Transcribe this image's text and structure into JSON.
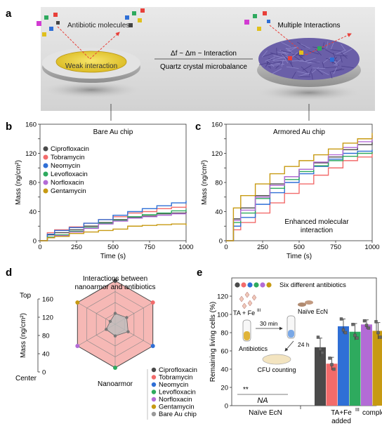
{
  "panels": {
    "a": "a",
    "b": "b",
    "c": "c",
    "d": "d",
    "e": "e"
  },
  "schematic": {
    "antibiotic_label": "Antibiotic molecules",
    "weak_label": "Weak interaction",
    "multiple_label": "Multiple Interactions",
    "equation": "Δf ~ Δm ~ Interaction",
    "qcm_label": "Quartz crystal microbalance"
  },
  "colors": {
    "Ciprofloxacin": "#4a4a4a",
    "Tobramycin": "#f26b6b",
    "Neomycin": "#2f6fd6",
    "Levofloxacin": "#2eaa5e",
    "Norfloxacin": "#b36bd6",
    "Gentamycin": "#c79a12"
  },
  "chart_data": [
    {
      "type": "line",
      "panel": "b",
      "title": "Bare Au chip",
      "xlabel": "Time (s)",
      "ylabel": "Mass (ng/cm²)",
      "xlim": [
        0,
        1000
      ],
      "ylim": [
        0,
        160
      ],
      "xticks": [
        0,
        250,
        500,
        750,
        1000
      ],
      "yticks": [
        0,
        20,
        40,
        60,
        80,
        100,
        120,
        140,
        160
      ],
      "x": [
        0,
        50,
        100,
        200,
        300,
        400,
        500,
        600,
        700,
        800,
        900,
        1000
      ],
      "legend": [
        "Ciprofloxacin",
        "Tobramycin",
        "Neomycin",
        "Levofloxacin",
        "Norfloxacin",
        "Gentamycin"
      ],
      "series": [
        {
          "name": "Ciprofloxacin",
          "values": [
            0,
            8,
            11,
            15,
            20,
            25,
            29,
            32,
            34,
            37,
            38,
            40
          ]
        },
        {
          "name": "Tobramycin",
          "values": [
            0,
            11,
            15,
            19,
            24,
            29,
            33,
            38,
            40,
            44,
            46,
            49
          ]
        },
        {
          "name": "Neomycin",
          "values": [
            0,
            9,
            14,
            18,
            24,
            29,
            35,
            40,
            44,
            48,
            52,
            55
          ]
        },
        {
          "name": "Levofloxacin",
          "values": [
            0,
            5,
            8,
            13,
            18,
            24,
            28,
            33,
            36,
            38,
            41,
            43
          ]
        },
        {
          "name": "Norfloxacin",
          "values": [
            0,
            4,
            7,
            12,
            17,
            23,
            27,
            31,
            33,
            35,
            37,
            38
          ]
        },
        {
          "name": "Gentamycin",
          "values": [
            0,
            4,
            6,
            10,
            12,
            14,
            16,
            20,
            21,
            22,
            23,
            21
          ]
        }
      ]
    },
    {
      "type": "line",
      "panel": "c",
      "title": "Armored Au chip",
      "annotation": "Enhanced molecular interaction",
      "xlabel": "Time (s)",
      "ylabel": "Mass (ng/cm²)",
      "xlim": [
        0,
        1000
      ],
      "ylim": [
        0,
        160
      ],
      "xticks": [
        0,
        250,
        500,
        750,
        1000
      ],
      "yticks": [
        0,
        20,
        40,
        60,
        80,
        100,
        120,
        140,
        160
      ],
      "x": [
        0,
        50,
        100,
        200,
        300,
        400,
        500,
        600,
        700,
        800,
        900,
        1000
      ],
      "series": [
        {
          "name": "Ciprofloxacin",
          "values": [
            0,
            30,
            45,
            62,
            78,
            88,
            98,
            107,
            115,
            125,
            132,
            138
          ]
        },
        {
          "name": "Tobramycin",
          "values": [
            0,
            15,
            25,
            38,
            52,
            65,
            78,
            90,
            100,
            110,
            115,
            122
          ]
        },
        {
          "name": "Neomycin",
          "values": [
            0,
            20,
            32,
            50,
            66,
            80,
            92,
            102,
            112,
            120,
            123,
            125
          ]
        },
        {
          "name": "Levofloxacin",
          "values": [
            0,
            25,
            38,
            58,
            72,
            84,
            95,
            103,
            110,
            116,
            120,
            122
          ]
        },
        {
          "name": "Norfloxacin",
          "values": [
            0,
            28,
            42,
            60,
            76,
            88,
            98,
            108,
            118,
            128,
            136,
            145
          ]
        },
        {
          "name": "Gentamycin",
          "values": [
            0,
            45,
            62,
            78,
            92,
            102,
            110,
            118,
            126,
            134,
            140,
            148
          ]
        }
      ]
    },
    {
      "type": "radar",
      "panel": "d",
      "title": "Interactions between nanoarmor and antibiotics",
      "ylabel": "Mass (ng/cm²)",
      "axis_top_label": "Top",
      "axis_bottom_label": "Center",
      "ticks": [
        160,
        120,
        80,
        40,
        0
      ],
      "rmax": 160,
      "axes": [
        "Ciprofloxacin",
        "Tobramycin",
        "Neomycin",
        "Levofloxacin",
        "Norfloxacin",
        "Gentamycin"
      ],
      "legend": [
        "Ciprofloxacin",
        "Tobramycin",
        "Neomycin",
        "Levofloxacin",
        "Norfloxacin",
        "Gentamycin",
        "Bare Au chip"
      ],
      "series": [
        {
          "name": "Nanoarmor",
          "values": [
            138,
            122,
            125,
            122,
            145,
            148
          ]
        },
        {
          "name": "Bare Au chip",
          "values": [
            40,
            49,
            55,
            43,
            38,
            21
          ]
        }
      ]
    },
    {
      "type": "bar",
      "panel": "e",
      "ylabel": "Remaining living cells (%)",
      "ylim": [
        0,
        140
      ],
      "yticks": [
        0,
        20,
        40,
        60,
        80,
        100,
        120
      ],
      "legend_label": "Six different antibiotics",
      "categories": [
        "Naïve EcN",
        "TA+FeIII complexes added"
      ],
      "series": [
        {
          "name": "Ciprofloxacin",
          "value": 64,
          "err": 10,
          "points": [
            75,
            62,
            58
          ]
        },
        {
          "name": "Tobramycin",
          "value": 46,
          "err": 7,
          "points": [
            52,
            45,
            40
          ]
        },
        {
          "name": "Neomycin",
          "value": 87,
          "err": 8,
          "points": [
            95,
            83,
            80
          ]
        },
        {
          "name": "Levofloxacin",
          "value": 81,
          "err": 9,
          "points": [
            89,
            77,
            74
          ]
        },
        {
          "name": "Norfloxacin",
          "value": 89,
          "err": 5,
          "points": [
            93,
            88,
            85
          ]
        },
        {
          "name": "Gentamycin",
          "value": 82,
          "err": 9,
          "points": [
            92,
            80,
            75
          ]
        }
      ],
      "naive_value": "NA",
      "significance": "**",
      "inset": {
        "complex": "TA + Fe",
        "complex_sup": "III",
        "cells": "Naïve EcN",
        "step1": "30 min",
        "step2": "24 h",
        "antibiotics": "Antibiotics",
        "counting": "CFU counting"
      }
    }
  ]
}
